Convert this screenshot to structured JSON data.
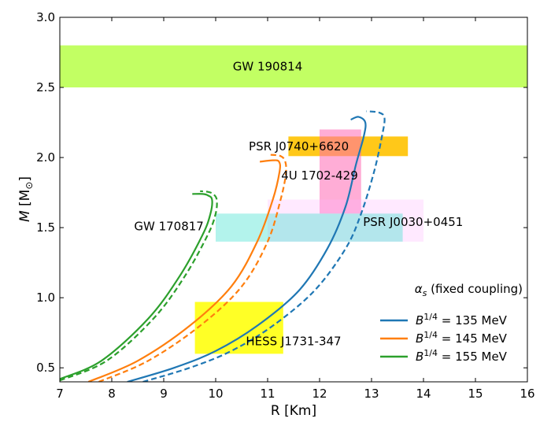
{
  "chart_data": {
    "type": "line",
    "xlabel": "R [Km]",
    "ylabel_main": "M",
    "ylabel_sub": "[M",
    "ylabel_sun": "⊙",
    "ylabel_end": "]",
    "xlim": [
      7,
      16
    ],
    "ylim": [
      0.4,
      3.0
    ],
    "xticks": [
      7,
      8,
      9,
      10,
      11,
      12,
      13,
      14,
      15,
      16
    ],
    "yticks": [
      0.5,
      1.0,
      1.5,
      2.0,
      2.5,
      3.0
    ],
    "xtick_labels": [
      "7",
      "8",
      "9",
      "10",
      "11",
      "12",
      "13",
      "14",
      "15",
      "16"
    ],
    "ytick_labels": [
      "0.5",
      "1.0",
      "1.5",
      "2.0",
      "2.5",
      "3.0"
    ],
    "grid": false,
    "legend_position": "lower-right",
    "legend_title": "α",
    "legend_title_sub": "s",
    "legend_title_rest": " (fixed coupling)",
    "regions": [
      {
        "label": "GW 190814",
        "x": [
          7,
          16
        ],
        "y": [
          2.5,
          2.8
        ],
        "color": "#adff2f",
        "opacity": 0.75
      },
      {
        "label": "PSR J0740+6620",
        "x": [
          11.4,
          13.7
        ],
        "y": [
          2.01,
          2.15
        ],
        "color": "#ffc200",
        "opacity": 0.9
      },
      {
        "label": "4U 1702-429",
        "x": [
          12.0,
          12.8
        ],
        "y": [
          1.6,
          2.2
        ],
        "color": "#ff69b4",
        "opacity": 0.55
      },
      {
        "label": "PSR J0030+0451",
        "x": [
          11.0,
          14.0
        ],
        "y": [
          1.4,
          1.7
        ],
        "color": "#ffb6ff",
        "opacity": 0.3
      },
      {
        "label": "GW 170817",
        "x": [
          10.0,
          13.6
        ],
        "y": [
          1.4,
          1.6
        ],
        "color": "#40e0d0",
        "opacity": 0.4
      },
      {
        "label": "HESS J1731-347",
        "x": [
          9.6,
          11.3
        ],
        "y": [
          0.6,
          0.97
        ],
        "color": "#ffff00",
        "opacity": 0.85
      }
    ],
    "region_labels": [
      {
        "text": "GW 190814",
        "x": 11.0,
        "y": 2.65
      },
      {
        "text": "PSR J0740+6620",
        "x": 11.6,
        "y": 2.08
      },
      {
        "text": "4U 1702-429",
        "x": 12.0,
        "y": 1.87
      },
      {
        "text": "PSR J0030+0451",
        "x": 13.8,
        "y": 1.54
      },
      {
        "text": "GW 170817",
        "x": 9.1,
        "y": 1.51
      },
      {
        "text": "HESS J1731-347",
        "x": 11.5,
        "y": 0.69
      }
    ],
    "series": [
      {
        "name": "B",
        "name_sup": "1/4",
        "name_rest": " = 135 MeV",
        "color": "#1f77b4",
        "solid": [
          [
            8.3,
            0.4
          ],
          [
            9.2,
            0.5
          ],
          [
            10.0,
            0.62
          ],
          [
            10.8,
            0.8
          ],
          [
            11.6,
            1.05
          ],
          [
            12.15,
            1.35
          ],
          [
            12.5,
            1.65
          ],
          [
            12.7,
            1.95
          ],
          [
            12.85,
            2.15
          ],
          [
            12.88,
            2.25
          ],
          [
            12.75,
            2.29
          ],
          [
            12.6,
            2.27
          ]
        ],
        "dashed": [
          [
            8.6,
            0.4
          ],
          [
            9.5,
            0.5
          ],
          [
            10.3,
            0.62
          ],
          [
            11.1,
            0.8
          ],
          [
            11.9,
            1.05
          ],
          [
            12.5,
            1.35
          ],
          [
            12.8,
            1.6
          ],
          [
            13.05,
            1.9
          ],
          [
            13.2,
            2.15
          ],
          [
            13.25,
            2.28
          ],
          [
            13.15,
            2.32
          ],
          [
            12.9,
            2.33
          ]
        ]
      },
      {
        "name": "B",
        "name_sup": "1/4",
        "name_rest": " = 145 MeV",
        "color": "#ff7f0e",
        "solid": [
          [
            7.55,
            0.4
          ],
          [
            8.5,
            0.55
          ],
          [
            9.5,
            0.8
          ],
          [
            10.3,
            1.08
          ],
          [
            10.8,
            1.4
          ],
          [
            11.1,
            1.7
          ],
          [
            11.23,
            1.9
          ],
          [
            11.22,
            1.97
          ],
          [
            11.1,
            1.98
          ],
          [
            10.85,
            1.97
          ]
        ],
        "dashed": [
          [
            7.75,
            0.4
          ],
          [
            8.7,
            0.55
          ],
          [
            9.7,
            0.8
          ],
          [
            10.5,
            1.08
          ],
          [
            11.0,
            1.4
          ],
          [
            11.25,
            1.7
          ],
          [
            11.35,
            1.88
          ],
          [
            11.34,
            1.97
          ],
          [
            11.25,
            2.01
          ],
          [
            11.05,
            2.02
          ]
        ]
      },
      {
        "name": "B",
        "name_sup": "1/4",
        "name_rest": " = 155 MeV",
        "color": "#2ca02c",
        "solid": [
          [
            7.0,
            0.42
          ],
          [
            7.8,
            0.55
          ],
          [
            8.7,
            0.85
          ],
          [
            9.3,
            1.15
          ],
          [
            9.75,
            1.45
          ],
          [
            9.9,
            1.6
          ],
          [
            9.93,
            1.7
          ],
          [
            9.85,
            1.73
          ],
          [
            9.75,
            1.74
          ],
          [
            9.55,
            1.74
          ]
        ],
        "dashed": [
          [
            7.0,
            0.41
          ],
          [
            7.9,
            0.55
          ],
          [
            8.8,
            0.85
          ],
          [
            9.4,
            1.15
          ],
          [
            9.85,
            1.45
          ],
          [
            10.0,
            1.6
          ],
          [
            10.02,
            1.7
          ],
          [
            9.95,
            1.74
          ],
          [
            9.85,
            1.755
          ],
          [
            9.7,
            1.76
          ]
        ]
      }
    ]
  }
}
